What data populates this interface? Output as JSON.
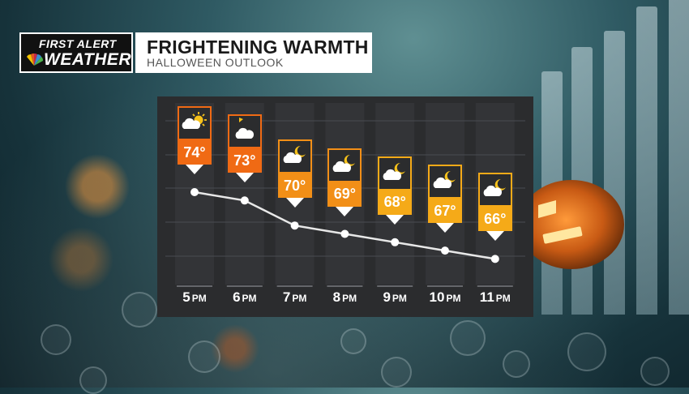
{
  "header": {
    "logo_line1": "FIRST ALERT",
    "logo_line2": "WEATHER",
    "title": "FRIGHTENING WARMTH",
    "subtitle": "HALLOWEEN OUTLOOK"
  },
  "colors": {
    "orange_dark": "#f06a14",
    "orange_mid": "#f28f17",
    "orange_light": "#f5aa18",
    "line": "#e8e8e8",
    "panel": "#2b2c2e"
  },
  "chart_data": {
    "type": "line",
    "x": [
      "5",
      "6",
      "7",
      "8",
      "9",
      "10",
      "11"
    ],
    "x_suffix": "PM",
    "values": [
      74,
      73,
      70,
      69,
      68,
      67,
      66
    ],
    "value_labels": [
      "74°",
      "73°",
      "70°",
      "69°",
      "68°",
      "67°",
      "66°"
    ],
    "icons": [
      "partly-sunny-icon",
      "partly-cloudy-day-icon",
      "partly-cloudy-night-icon",
      "partly-cloudy-night-icon",
      "partly-cloudy-night-icon",
      "partly-cloudy-night-icon",
      "partly-cloudy-night-icon"
    ],
    "title": "FRIGHTENING WARMTH",
    "xlabel": "",
    "ylabel": "",
    "grid": true
  }
}
